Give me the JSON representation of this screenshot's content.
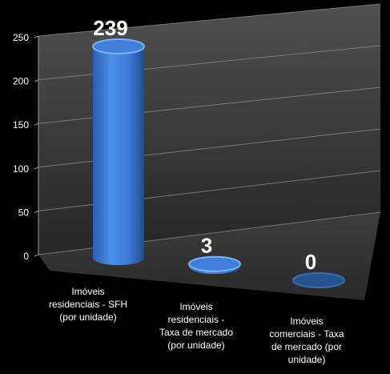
{
  "chart_data": {
    "type": "bar",
    "style": "3d-cylinder",
    "categories": [
      [
        "Imóveis",
        "residenciais - SFH",
        "(por unidade)"
      ],
      [
        "Imóveis",
        "residenciais -",
        "Taxa de mercado",
        "(por unidade)"
      ],
      [
        "Imóveis",
        "comerciais - Taxa",
        "de mercado (por",
        "unidade)"
      ]
    ],
    "values": [
      239,
      3,
      0
    ],
    "data_labels": [
      "239",
      "3",
      "0"
    ],
    "y_ticks": [
      "0",
      "50",
      "100",
      "150",
      "200",
      "250"
    ],
    "ylim": [
      0,
      250
    ],
    "grid": true,
    "legend": false,
    "colors": {
      "background": "#000000",
      "bars": [
        "#3f7fd9",
        "#3f7fd9",
        "#27528f"
      ],
      "bar_tops": [
        "#7fb2f0",
        "#7fb2f0",
        "#3a6db0"
      ],
      "wall": "#4a4a4a",
      "floor": "#3a3a3a",
      "grid": "#8a8a8a",
      "text": "#ffffff"
    }
  }
}
